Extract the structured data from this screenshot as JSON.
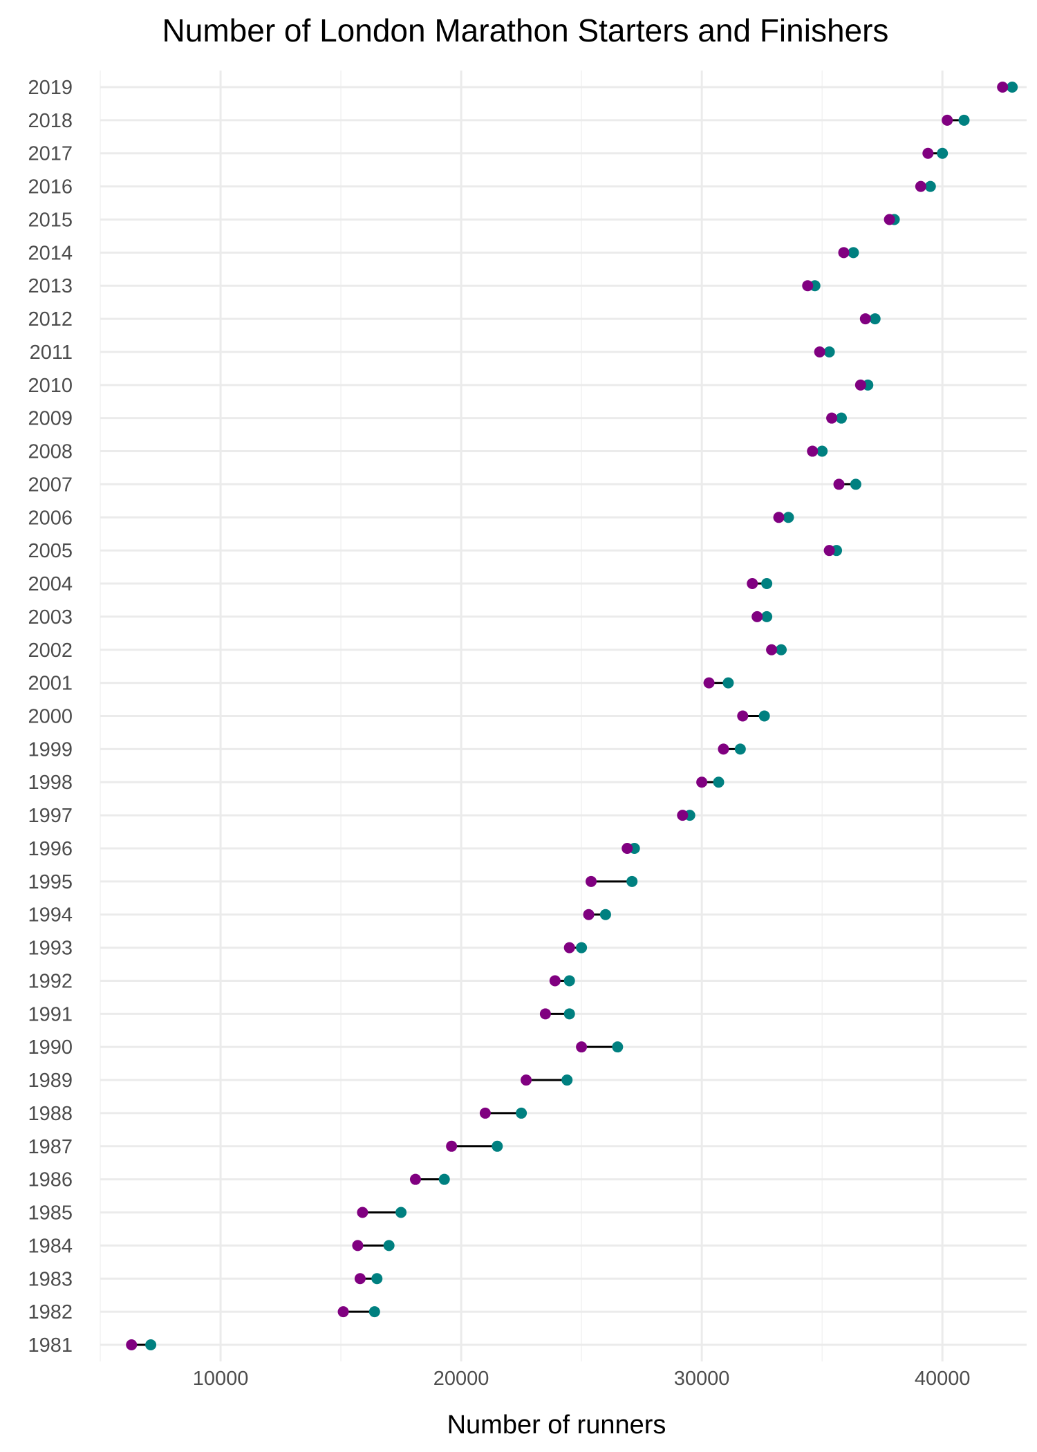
{
  "chart_data": {
    "type": "dumbbell",
    "title": "Number of London Marathon Starters and Finishers",
    "xlabel": "Number of runners",
    "ylabel": "",
    "xlim": [
      5000,
      43500
    ],
    "xticks": [
      10000,
      20000,
      30000,
      40000
    ],
    "grid": true,
    "legend": "none",
    "colors": {
      "finishers": "#800080",
      "starters": "#008080",
      "segment": "#000000"
    },
    "categories": [
      "1981",
      "1982",
      "1983",
      "1984",
      "1985",
      "1986",
      "1987",
      "1988",
      "1989",
      "1990",
      "1991",
      "1992",
      "1993",
      "1994",
      "1995",
      "1996",
      "1997",
      "1998",
      "1999",
      "2000",
      "2001",
      "2002",
      "2003",
      "2004",
      "2005",
      "2006",
      "2007",
      "2008",
      "2009",
      "2010",
      "2011",
      "2012",
      "2013",
      "2014",
      "2015",
      "2016",
      "2017",
      "2018",
      "2019"
    ],
    "series": [
      {
        "values": [
          6300,
          15100,
          15800,
          15700,
          15900,
          18100,
          19600,
          21000,
          22700,
          25000,
          23500,
          23900,
          24500,
          25300,
          25400,
          26900,
          29200,
          30000,
          30900,
          31700,
          30300,
          32900,
          32300,
          32100,
          35300,
          33200,
          35700,
          34600,
          35400,
          36600,
          34900,
          36800,
          34400,
          35900,
          37800,
          39100,
          39400,
          40200,
          42500
        ]
      },
      {
        "values": [
          7100,
          16400,
          16500,
          17000,
          17500,
          19300,
          21500,
          22500,
          24400,
          26500,
          24500,
          24500,
          25000,
          26000,
          27100,
          27200,
          29500,
          30700,
          31600,
          32600,
          31100,
          33300,
          32700,
          32700,
          35600,
          33600,
          36400,
          35000,
          35800,
          36900,
          35300,
          37200,
          34700,
          36300,
          38000,
          39500,
          40000,
          40900,
          42900
        ]
      }
    ]
  }
}
